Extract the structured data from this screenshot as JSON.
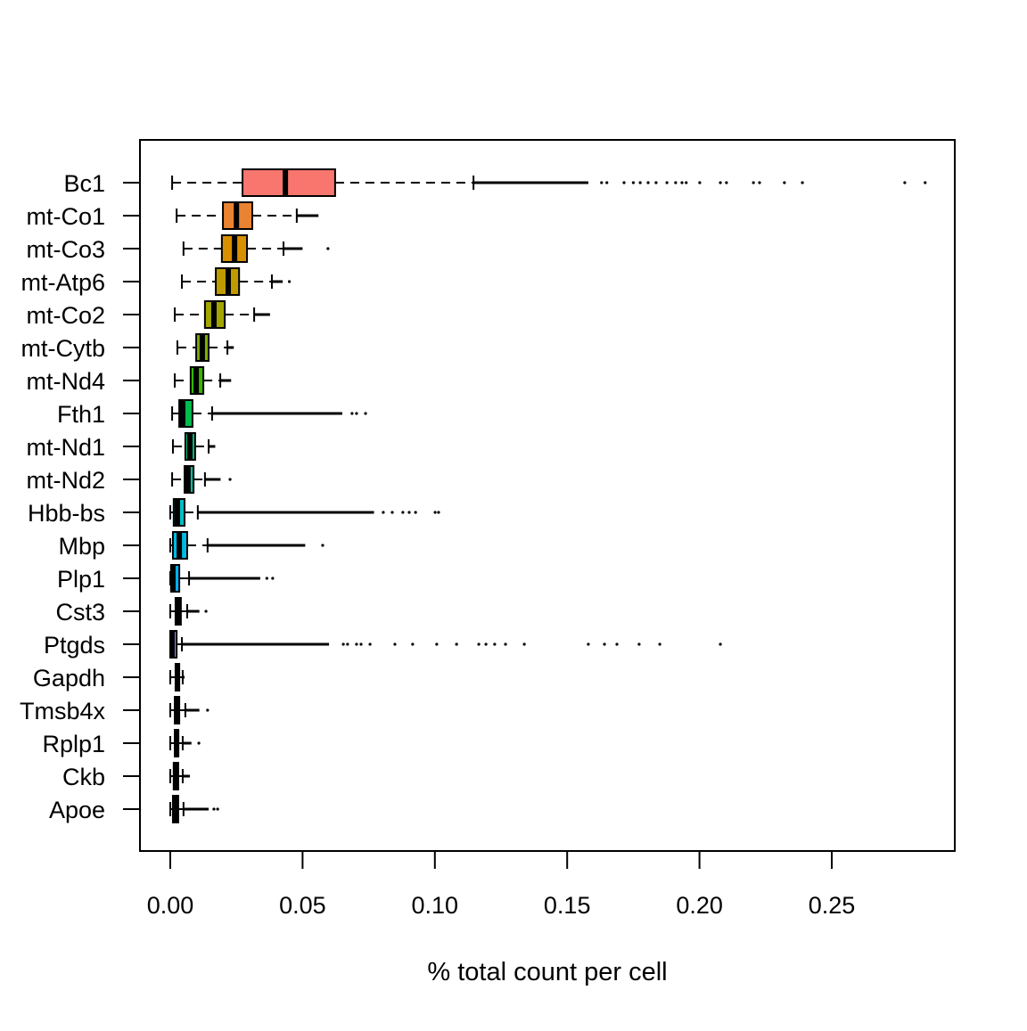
{
  "chart_data": {
    "type": "boxplot",
    "orientation": "horizontal",
    "title": "",
    "xlabel": "% total count per cell",
    "ylabel": "",
    "xlim": [
      -0.011,
      0.296
    ],
    "xticks": [
      0.0,
      0.05,
      0.1,
      0.15,
      0.2,
      0.25
    ],
    "xtick_labels": [
      "0.00",
      "0.05",
      "0.10",
      "0.15",
      "0.20",
      "0.25"
    ],
    "grid": false,
    "series": [
      {
        "name": "Bc1",
        "color": "#F8766D",
        "lower_whisker": 0.0007,
        "q1": 0.0273,
        "median": 0.0435,
        "q3": 0.0623,
        "upper_whisker": 0.1146,
        "outliers_dense_to": 0.158,
        "outliers": [
          0.163,
          0.165,
          0.1715,
          0.175,
          0.1776,
          0.1806,
          0.1836,
          0.1877,
          0.191,
          0.1934,
          0.195,
          0.2001,
          0.2079,
          0.2102,
          0.2204,
          0.2227,
          0.2321,
          0.2389,
          0.2776,
          0.2853
        ]
      },
      {
        "name": "mt-Co1",
        "color": "#EA8331",
        "lower_whisker": 0.0024,
        "q1": 0.0199,
        "median": 0.025,
        "q3": 0.031,
        "upper_whisker": 0.0478,
        "outliers_dense_to": 0.056,
        "outliers": []
      },
      {
        "name": "mt-Co3",
        "color": "#D89000",
        "lower_whisker": 0.005,
        "q1": 0.0195,
        "median": 0.0243,
        "q3": 0.029,
        "upper_whisker": 0.0428,
        "outliers_dense_to": 0.05,
        "outliers": [
          0.0596
        ]
      },
      {
        "name": "mt-Atp6",
        "color": "#C09B00",
        "lower_whisker": 0.0044,
        "q1": 0.0172,
        "median": 0.0219,
        "q3": 0.026,
        "upper_whisker": 0.0384,
        "outliers_dense_to": 0.0425,
        "outliers": [
          0.045
        ]
      },
      {
        "name": "mt-Co2",
        "color": "#A3A500",
        "lower_whisker": 0.0017,
        "q1": 0.0131,
        "median": 0.0165,
        "q3": 0.0206,
        "upper_whisker": 0.0317,
        "outliers_dense_to": 0.0377,
        "outliers": []
      },
      {
        "name": "mt-Cytb",
        "color": "#7CAE00",
        "lower_whisker": 0.0027,
        "q1": 0.0098,
        "median": 0.0121,
        "q3": 0.0145,
        "upper_whisker": 0.0216,
        "outliers_dense_to": 0.024,
        "outliers": []
      },
      {
        "name": "mt-Nd4",
        "color": "#39B600",
        "lower_whisker": 0.0017,
        "q1": 0.0077,
        "median": 0.0098,
        "q3": 0.0125,
        "upper_whisker": 0.0189,
        "outliers_dense_to": 0.023,
        "outliers": []
      },
      {
        "name": "Fth1",
        "color": "#00BB4E",
        "lower_whisker": 0.0007,
        "q1": 0.0034,
        "median": 0.0047,
        "q3": 0.0084,
        "upper_whisker": 0.0158,
        "outliers_dense_to": 0.065,
        "outliers": [
          0.0687,
          0.0704,
          0.0738
        ]
      },
      {
        "name": "mt-Nd1",
        "color": "#00BF7D",
        "lower_whisker": 0.001,
        "q1": 0.0057,
        "median": 0.0074,
        "q3": 0.0094,
        "upper_whisker": 0.0145,
        "outliers_dense_to": 0.017,
        "outliers": []
      },
      {
        "name": "mt-Nd2",
        "color": "#00C1A3",
        "lower_whisker": 0.0007,
        "q1": 0.0054,
        "median": 0.0067,
        "q3": 0.0088,
        "upper_whisker": 0.0131,
        "outliers_dense_to": 0.019,
        "outliers": [
          0.0226
        ]
      },
      {
        "name": "Hbb-bs",
        "color": "#00BFC4",
        "lower_whisker": 0.0,
        "q1": 0.0013,
        "median": 0.0027,
        "q3": 0.0054,
        "upper_whisker": 0.0104,
        "outliers_dense_to": 0.077,
        "outliers": [
          0.0805,
          0.0839,
          0.0879,
          0.0903,
          0.0927,
          0.1001,
          0.1014
        ]
      },
      {
        "name": "Mbp",
        "color": "#00BAE0",
        "lower_whisker": 0.0,
        "q1": 0.001,
        "median": 0.0034,
        "q3": 0.0064,
        "upper_whisker": 0.0141,
        "outliers_dense_to": 0.051,
        "outliers": [
          0.0576
        ]
      },
      {
        "name": "Plp1",
        "color": "#00B0F6",
        "lower_whisker": 0.0,
        "q1": 0.0003,
        "median": 0.001,
        "q3": 0.0034,
        "upper_whisker": 0.0071,
        "outliers_dense_to": 0.034,
        "outliers": [
          0.0365,
          0.0387
        ]
      },
      {
        "name": "Cst3",
        "color": "#35A2FF",
        "lower_whisker": 0.0,
        "q1": 0.002,
        "median": 0.0027,
        "q3": 0.004,
        "upper_whisker": 0.0064,
        "outliers_dense_to": 0.011,
        "outliers": [
          0.0135
        ]
      },
      {
        "name": "Ptgds",
        "color": "#9590FF",
        "lower_whisker": 0.0,
        "q1": 0.0,
        "median": 0.0007,
        "q3": 0.0024,
        "upper_whisker": 0.0044,
        "outliers_dense_to": 0.06,
        "outliers": [
          0.0654,
          0.067,
          0.0704,
          0.0721,
          0.0755,
          0.0849,
          0.0916,
          0.1007,
          0.1082,
          0.1166,
          0.1193,
          0.1226,
          0.1267,
          0.1338,
          0.158,
          0.1641,
          0.1688,
          0.1772,
          0.185,
          0.2079
        ]
      },
      {
        "name": "Gapdh",
        "color": "#C77CFF",
        "lower_whisker": 0.0,
        "q1": 0.002,
        "median": 0.0027,
        "q3": 0.0034,
        "upper_whisker": 0.0047,
        "outliers_dense_to": 0.0054,
        "outliers": []
      },
      {
        "name": "Tmsb4x",
        "color": "#E76BF3",
        "lower_whisker": 0.0,
        "q1": 0.0017,
        "median": 0.0024,
        "q3": 0.0034,
        "upper_whisker": 0.0057,
        "outliers_dense_to": 0.011,
        "outliers": [
          0.0141
        ]
      },
      {
        "name": "Rplp1",
        "color": "#FA62DB",
        "lower_whisker": 0.0,
        "q1": 0.0017,
        "median": 0.0024,
        "q3": 0.003,
        "upper_whisker": 0.0047,
        "outliers_dense_to": 0.008,
        "outliers": [
          0.0108
        ]
      },
      {
        "name": "Ckb",
        "color": "#FF62BC",
        "lower_whisker": 0.0,
        "q1": 0.0013,
        "median": 0.002,
        "q3": 0.003,
        "upper_whisker": 0.0047,
        "outliers_dense_to": 0.0074,
        "outliers": []
      },
      {
        "name": "Apoe",
        "color": "#FF6C90",
        "lower_whisker": 0.0,
        "q1": 0.001,
        "median": 0.002,
        "q3": 0.003,
        "upper_whisker": 0.005,
        "outliers_dense_to": 0.0145,
        "outliers": [
          0.0165,
          0.0179
        ]
      }
    ]
  }
}
